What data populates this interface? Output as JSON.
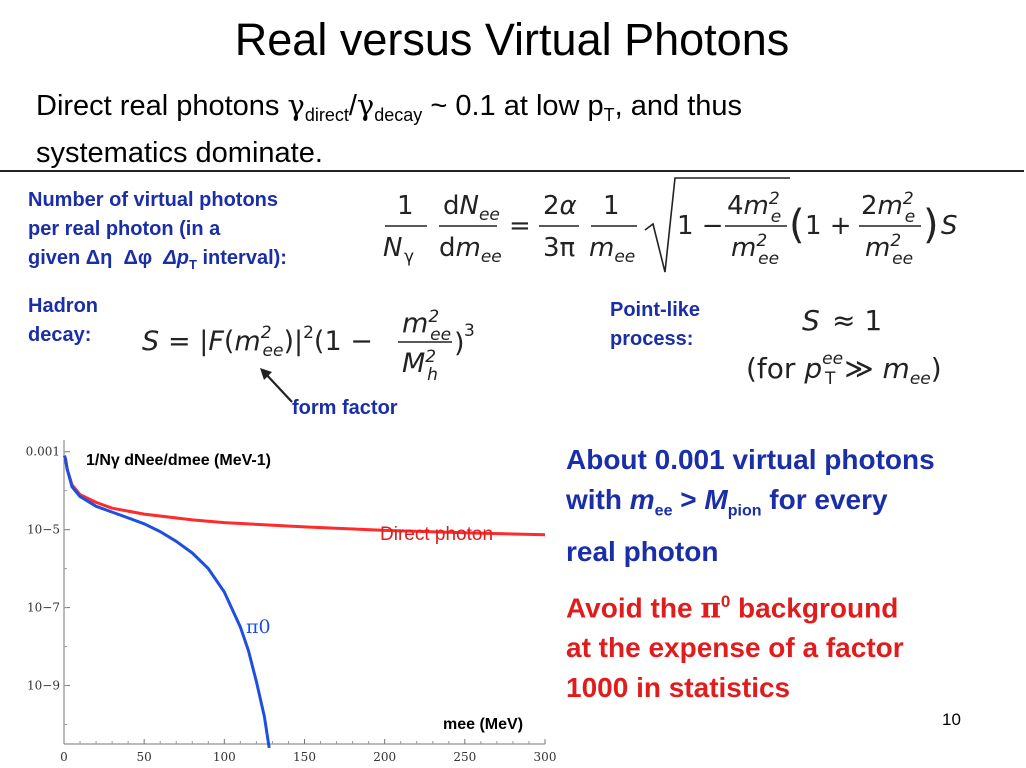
{
  "slide": {
    "title": "Real versus Virtual Photons",
    "subtitle_parts": {
      "prefix": "Direct real photons ",
      "gamma": "γ",
      "direct": "direct",
      "slash": "/",
      "decay": "decay",
      "middle": " ~ 0.1 at low p",
      "T": "T",
      "suffix": ", and thus",
      "line2": "systematics dominate."
    },
    "page_number": "10"
  },
  "labels": {
    "virtual_line1": "Number of virtual photons",
    "virtual_line2": "per real photon (in  a",
    "virtual_line3_a": "given ",
    "virtual_delta_eta": "Δη",
    "virtual_delta_phi": "Δφ",
    "virtual_delta_pt": "Δp",
    "virtual_pt_sub": "T",
    "virtual_line3_b": " interval):",
    "hadron_1": "Hadron",
    "hadron_2": "decay:",
    "point_1": "Point-like",
    "point_2": "process:",
    "form_factor": "form factor"
  },
  "right_text": {
    "about_1": "About 0.001 virtual photons",
    "about_2a": "with ",
    "about_m": "m",
    "about_ee": "ee",
    "about_gt": " > ",
    "about_M": "M",
    "about_pion": "pion",
    "about_2b": " for every",
    "about_3": "real photon",
    "avoid_1a": "Avoid the ",
    "avoid_pi": "π",
    "avoid_0": "0",
    "avoid_1b": " background",
    "avoid_2": "at the expense of a factor",
    "avoid_3": "1000 in statistics"
  },
  "chart_data": {
    "type": "line",
    "ylabel": "1/Nγ dNee/dmee (MeV-1)",
    "xlabel": "mee (MeV)",
    "xlim": [
      0,
      300
    ],
    "ylim_log10": [
      -10.5,
      -2.7
    ],
    "y_scale": "log",
    "x_ticks": [
      "0",
      "50",
      "100",
      "150",
      "200",
      "250",
      "300"
    ],
    "y_ticks": [
      "0.001",
      "10−5",
      "10−7",
      "10−9"
    ],
    "series": [
      {
        "name": "Direct photon",
        "color": "#ff2a2a",
        "x": [
          1,
          2,
          5,
          10,
          20,
          30,
          50,
          80,
          100,
          150,
          200,
          250,
          300
        ],
        "y_log10": [
          -3.2,
          -3.45,
          -3.85,
          -4.1,
          -4.3,
          -4.45,
          -4.6,
          -4.75,
          -4.82,
          -4.93,
          -5.02,
          -5.08,
          -5.13
        ]
      },
      {
        "name": "π0",
        "color": "#1d4fe0",
        "x": [
          1,
          2,
          5,
          10,
          20,
          30,
          40,
          50,
          60,
          70,
          80,
          90,
          100,
          110,
          115,
          120,
          125,
          128
        ],
        "y_log10": [
          -3.2,
          -3.45,
          -3.9,
          -4.15,
          -4.4,
          -4.55,
          -4.7,
          -4.85,
          -5.05,
          -5.3,
          -5.6,
          -6.0,
          -6.6,
          -7.5,
          -8.1,
          -8.9,
          -9.8,
          -10.6
        ]
      }
    ],
    "annotations": [
      {
        "text": "Direct photon",
        "color": "#e01c1c"
      },
      {
        "text": "π0",
        "color": "#1d4fe0"
      }
    ]
  }
}
